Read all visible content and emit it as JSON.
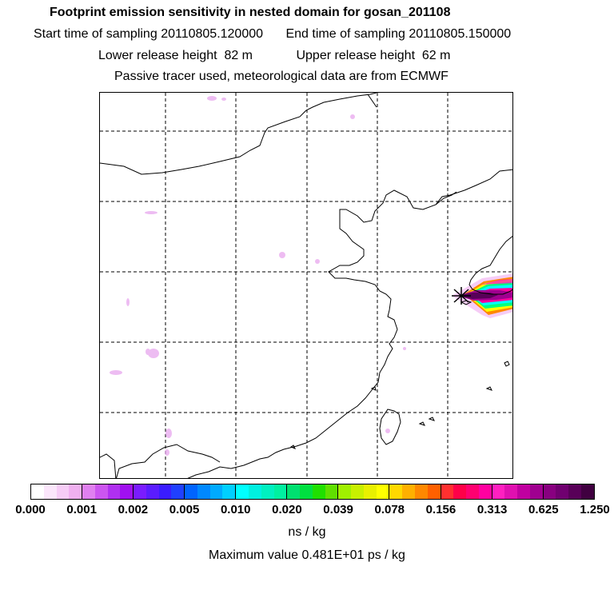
{
  "header": {
    "title": "Footprint emission sensitivity in nested domain for gosan_201108",
    "start_label": "Start time of sampling",
    "start_value": "20110805.120000",
    "end_label": "End time of sampling",
    "end_value": "20110805.150000",
    "lower_label": "Lower release height",
    "lower_value": "82 m",
    "upper_label": "Upper release height",
    "upper_value": "62 m",
    "note": "Passive tracer used, meteorological data are from ECMWF"
  },
  "colorbar": {
    "ticks": [
      "0.000",
      "0.001",
      "0.002",
      "0.005",
      "0.010",
      "0.020",
      "0.039",
      "0.078",
      "0.156",
      "0.313",
      "0.625",
      "1.250"
    ],
    "colors": [
      "#ffffff",
      "#fbe6fb",
      "#f6ccf6",
      "#f0b0f0",
      "#e080f0",
      "#cc55f0",
      "#b030f0",
      "#a010f0",
      "#7a1cff",
      "#5a1cff",
      "#3a1cff",
      "#2040ff",
      "#0064ff",
      "#0088ff",
      "#00aaff",
      "#00cfff",
      "#00ffff",
      "#00f0e0",
      "#00f0c0",
      "#00f0a0",
      "#00e070",
      "#00e040",
      "#20e000",
      "#60e000",
      "#a0f000",
      "#c8f000",
      "#e8f000",
      "#ffff00",
      "#ffd800",
      "#ffb000",
      "#ff8800",
      "#ff6000",
      "#ff3030",
      "#ff0048",
      "#ff0070",
      "#ff00a0",
      "#ff20c0",
      "#e010b0",
      "#c000a0",
      "#a00090",
      "#880080",
      "#700070",
      "#580058",
      "#400040"
    ],
    "units": "ns / kg",
    "max_label": "Maximum value  0.481E+01 ps / kg"
  }
}
